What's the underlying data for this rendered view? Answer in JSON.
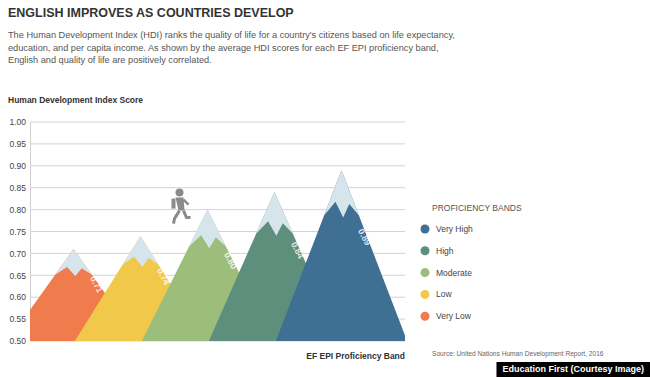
{
  "chart_data": {
    "type": "bar",
    "title": "ENGLISH IMPROVES AS COUNTRIES DEVELOP",
    "subtitle": "The Human Development Index (HDI) ranks the quality of life for a country's citizens based on life expectancy, education, and per capita income. As shown by the average HDI scores for each EF EPI proficiency band, English and quality of life are positively correlated.",
    "y_label": "Human Development Index Score",
    "x_label": "EF EPI Proficiency Band",
    "legend_title": "PROFICIENCY BANDS",
    "source": "Source: United Nations Human Development Report, 2016",
    "credit": "Education First (Courtesy Image)",
    "categories": [
      "Very Low",
      "Low",
      "Moderate",
      "High",
      "Very High"
    ],
    "values": [
      0.71,
      0.74,
      0.8,
      0.84,
      0.89
    ],
    "value_labels": [
      "0.71",
      "0.74",
      "0.80",
      "0.84",
      "0.89"
    ],
    "colors": [
      "#f07b4d",
      "#f2c84b",
      "#9dbd7b",
      "#5e8f7d",
      "#3f6f93"
    ],
    "ylim": [
      0.5,
      1.0
    ],
    "yticks": [
      {
        "value": 0.5,
        "label": "0.50"
      },
      0.55,
      {
        "value": 0.6,
        "label": "0.60"
      },
      0.65,
      {
        "value": 0.7,
        "label": "0.70"
      },
      0.75,
      {
        "value": 0.8,
        "label": "0.80"
      },
      0.85,
      {
        "value": 0.9,
        "label": "0.90"
      },
      0.95,
      {
        "value": 1.0,
        "label": "1.00"
      }
    ],
    "grid": true,
    "legend": "right",
    "data_labels": true,
    "tick_labels": "y"
  }
}
